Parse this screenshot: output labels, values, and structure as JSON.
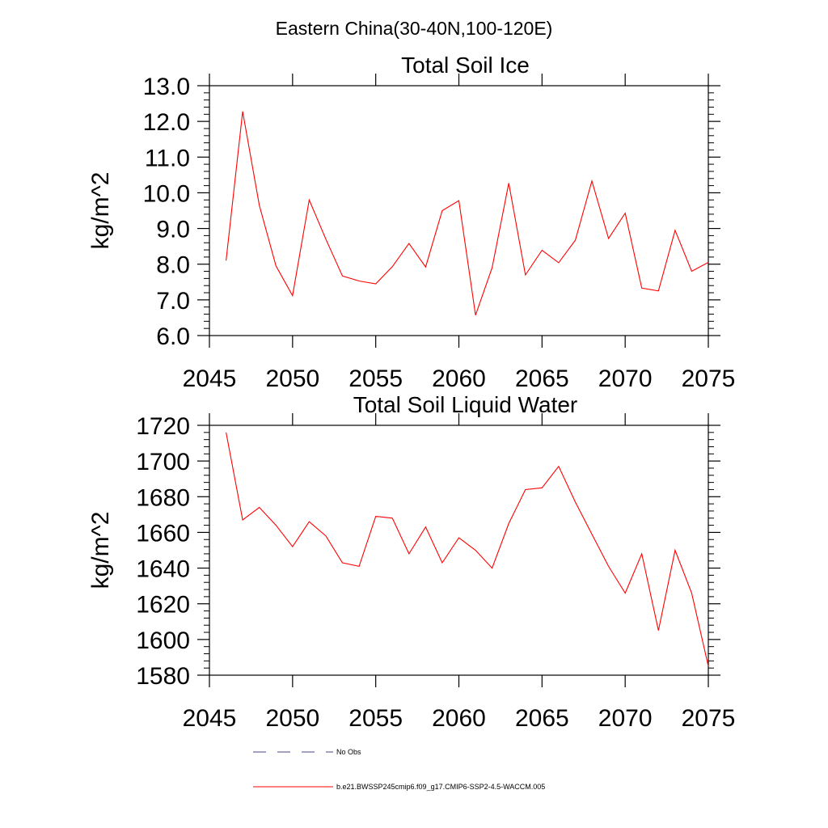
{
  "figure": {
    "title": "Eastern China(30-40N,100-120E)"
  },
  "chart_data": [
    {
      "type": "line",
      "title": "Total Soil Ice",
      "xlabel": "",
      "ylabel": "kg/m^2",
      "xlim": [
        2045,
        2075
      ],
      "ylim": [
        6.0,
        13.0
      ],
      "x_ticks": [
        2045,
        2050,
        2055,
        2060,
        2065,
        2070,
        2075
      ],
      "y_ticks": [
        6.0,
        7.0,
        8.0,
        9.0,
        10.0,
        11.0,
        12.0,
        13.0
      ],
      "y_tick_decimals": 1,
      "x": [
        2046,
        2047,
        2048,
        2049,
        2050,
        2051,
        2052,
        2053,
        2054,
        2055,
        2056,
        2057,
        2058,
        2059,
        2060,
        2061,
        2062,
        2063,
        2064,
        2065,
        2066,
        2067,
        2068,
        2069,
        2070,
        2071,
        2072,
        2073,
        2074,
        2075
      ],
      "series": [
        {
          "color": "#ff0000",
          "values": [
            8.1,
            12.28,
            9.65,
            7.95,
            7.12,
            9.8,
            8.7,
            7.67,
            7.53,
            7.45,
            7.93,
            8.58,
            7.92,
            9.5,
            9.78,
            6.57,
            7.9,
            10.27,
            7.7,
            8.39,
            8.04,
            8.67,
            10.33,
            8.72,
            9.43,
            7.33,
            7.25,
            8.95,
            7.8,
            8.05
          ]
        }
      ]
    },
    {
      "type": "line",
      "title": "Total Soil Liquid Water",
      "xlabel": "",
      "ylabel": "kg/m^2",
      "xlim": [
        2045,
        2075
      ],
      "ylim": [
        1580,
        1720
      ],
      "x_ticks": [
        2045,
        2050,
        2055,
        2060,
        2065,
        2070,
        2075
      ],
      "y_ticks": [
        1580,
        1600,
        1620,
        1640,
        1660,
        1680,
        1700,
        1720
      ],
      "y_tick_decimals": 0,
      "x": [
        2046,
        2047,
        2048,
        2049,
        2050,
        2051,
        2052,
        2053,
        2054,
        2055,
        2056,
        2057,
        2058,
        2059,
        2060,
        2061,
        2062,
        2063,
        2064,
        2065,
        2066,
        2067,
        2068,
        2069,
        2070,
        2071,
        2072,
        2073,
        2074,
        2075
      ],
      "series": [
        {
          "color": "#ff0000",
          "values": [
            1716,
            1667,
            1674,
            1664,
            1652,
            1666,
            1658,
            1643,
            1641,
            1669,
            1668,
            1648,
            1663,
            1643,
            1657,
            1650,
            1640,
            1665,
            1684,
            1685,
            1697,
            1677,
            1659,
            1641,
            1626,
            1648,
            1605,
            1650,
            1626,
            1585
          ]
        }
      ]
    }
  ],
  "legend": {
    "entries": [
      {
        "label": "No Obs",
        "color": "#444488",
        "style": "dashed"
      },
      {
        "label": "b.e21.BWSSP245cmip6.f09_g17.CMIP6-SSP2-4.5-WACCM.005",
        "color": "#ff0000",
        "style": "solid"
      }
    ]
  }
}
